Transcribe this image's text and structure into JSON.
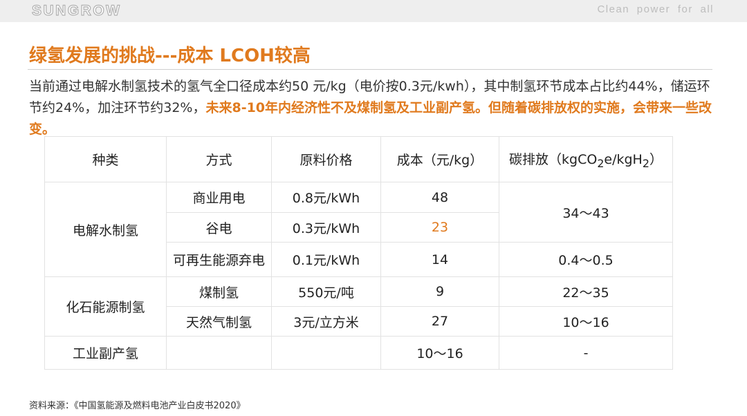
{
  "header": {
    "logo_text": "SUNGROW",
    "slogan": "Clean power for all"
  },
  "page_title": "绿氢发展的挑战---成本 LCOH较高",
  "intro": {
    "text_normal": "当前通过电解水制氢技术的氢气全口径成本约50 元/kg（电价按0.3元/kwh），其中制氢环节成本占比约44%，储运环节约24%，加注环节约32%，",
    "text_highlight": "未来8-10年内经济性不及煤制氢及工业副产氢。但随着碳排放权的实施，会带来一些改变。"
  },
  "table": {
    "headers": {
      "kind": "种类",
      "method": "方式",
      "price": "原料价格",
      "cost": "成本（元/kg）",
      "co2_prefix": "碳排放（kgCO",
      "co2_sub1": "2",
      "co2_mid": "e/kgH",
      "co2_sub2": "2",
      "co2_suffix": "）"
    },
    "groups": {
      "electrolysis": "电解水制氢",
      "fossil": "化石能源制氢",
      "industrial": "工业副产氢"
    },
    "rows": [
      {
        "method": "商业用电",
        "price": "0.8元/kWh",
        "cost": "48"
      },
      {
        "method": "谷电",
        "price": "0.3元/kWh",
        "cost": "23"
      },
      {
        "method": "可再生能源弃电",
        "price": "0.1元/kWh",
        "cost": "14",
        "co2": "0.4～0.5"
      },
      {
        "method": "煤制氢",
        "price": "550元/吨",
        "cost": "9",
        "co2": "22～35"
      },
      {
        "method": "天然气制氢",
        "price": "3元/立方米",
        "cost": "27",
        "co2": "10～16"
      },
      {
        "method": "",
        "price": "",
        "cost": "10～16",
        "co2": "-"
      }
    ],
    "co2_grid_power": "34～43",
    "highlight_color": "#e07a1e"
  },
  "footnote": "资料来源：《中国氢能源及燃料电池产业白皮书2020》"
}
